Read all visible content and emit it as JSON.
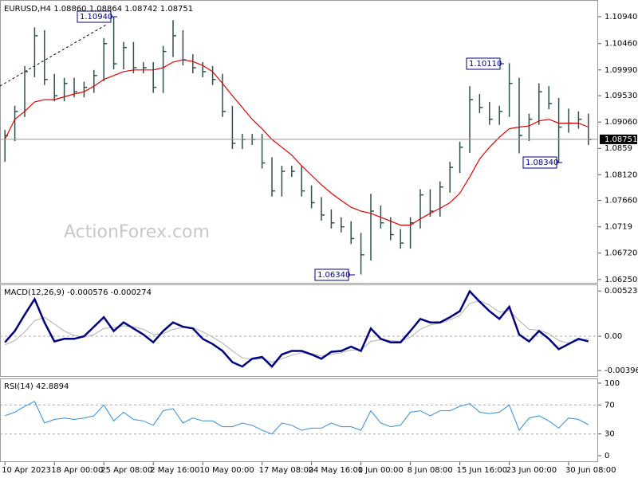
{
  "chart_data": [
    {
      "type": "hlc",
      "title": "EURUSD,H4  1.08860 1.08864 1.08742 1.08751",
      "watermark": "ActionForex.com",
      "color": "#2f4f4f",
      "high": [
        1.0892,
        1.0935,
        1.1006,
        1.1075,
        1.107,
        1.0992,
        1.0985,
        1.0985,
        1.0978,
        1.0999,
        1.1056,
        1.1094,
        1.1049,
        1.1049,
        1.1013,
        1.1013,
        1.1042,
        1.1088,
        1.107,
        1.1027,
        1.1013,
        1.1006,
        1.0992,
        1.0935,
        1.0885,
        1.0885,
        1.0885,
        1.0843,
        1.0828,
        1.0828,
        1.0828,
        1.0793,
        1.0772,
        1.075,
        1.0736,
        1.0729,
        1.0708,
        1.0778,
        1.0757,
        1.0736,
        1.0715,
        1.0736,
        1.0786,
        1.0786,
        1.08,
        1.0835,
        1.0871,
        1.097,
        1.0956,
        1.0942,
        1.0935,
        1.1011,
        1.0985,
        1.0921,
        1.0975,
        1.097,
        1.0949,
        1.093,
        1.0925,
        1.0921
      ],
      "low": [
        1.0835,
        1.0872,
        1.0915,
        1.0986,
        1.0972,
        1.0943,
        1.0943,
        1.095,
        1.095,
        1.0958,
        1.0979,
        1.1,
        1.1,
        1.0993,
        1.0993,
        1.0958,
        1.0958,
        1.1022,
        1.1007,
        1.0993,
        1.0986,
        1.0972,
        1.0915,
        1.0858,
        1.0858,
        1.0865,
        1.0823,
        1.0773,
        1.0773,
        1.0808,
        1.0773,
        1.0752,
        1.073,
        1.0716,
        1.0709,
        1.0688,
        1.0634,
        1.0659,
        1.0716,
        1.0695,
        1.068,
        1.068,
        1.0716,
        1.0737,
        1.0737,
        1.078,
        1.0815,
        1.0851,
        1.0922,
        1.0901,
        1.0901,
        1.0915,
        1.085,
        1.0872,
        1.0901,
        1.0929,
        1.0834,
        1.0887,
        1.0894,
        1.0865
      ],
      "close": [
        1.0882,
        1.0925,
        1.0996,
        1.106,
        1.0982,
        1.0953,
        1.0975,
        1.096,
        1.0968,
        1.0989,
        1.1046,
        1.101,
        1.1039,
        1.1003,
        1.1003,
        1.0968,
        1.1032,
        1.106,
        1.1017,
        1.1003,
        1.0996,
        1.0982,
        1.0925,
        1.0868,
        1.0875,
        1.0875,
        1.0833,
        1.0783,
        1.0818,
        1.0818,
        1.0783,
        1.0762,
        1.074,
        1.0726,
        1.0719,
        1.0698,
        1.0669,
        1.0747,
        1.0726,
        1.0705,
        1.069,
        1.0726,
        1.0776,
        1.0747,
        1.079,
        1.0825,
        1.0861,
        1.0946,
        1.0932,
        1.0911,
        1.0925,
        1.0975,
        1.0882,
        1.0911,
        1.096,
        1.0939,
        1.0897,
        1.0904,
        1.0911,
        1.0875
      ],
      "series": [
        {
          "color": "#e00000",
          "values": [
            1.0875,
            1.0911,
            1.0925,
            1.0942,
            1.0946,
            1.0946,
            1.0951,
            1.0956,
            1.096,
            1.097,
            1.0982,
            1.0989,
            1.0996,
            1.0999,
            1.0999,
            1.0999,
            1.1003,
            1.1013,
            1.1017,
            1.1014,
            1.1007,
            1.0996,
            1.0975,
            1.0953,
            1.0932,
            1.0911,
            1.0894,
            1.0875,
            1.0861,
            1.0847,
            1.0828,
            1.0811,
            1.0794,
            1.0779,
            1.0766,
            1.0754,
            1.0747,
            1.0743,
            1.0736,
            1.0729,
            1.0722,
            1.0722,
            1.0733,
            1.0743,
            1.0752,
            1.0762,
            1.0779,
            1.0808,
            1.084,
            1.0861,
            1.0879,
            1.0894,
            1.0897,
            1.0899,
            1.0908,
            1.0911,
            1.0904,
            1.0904,
            1.0904,
            1.0897
          ]
        }
      ],
      "current": 1.08751,
      "annotations": [
        "1.10940",
        "1.10110",
        "1.08340",
        "1.06340"
      ],
      "ylim": [
        1.0619,
        1.1121
      ],
      "yticks": [
        {
          "value": 1.1094,
          "label": "1.10940"
        },
        {
          "value": 1.1046,
          "label": "1.10460"
        },
        {
          "value": 1.0999,
          "label": "1.09990"
        },
        {
          "value": 1.0953,
          "label": "1.09530"
        },
        {
          "value": 1.0906,
          "label": "1.09060"
        },
        1.0859,
        {
          "value": 1.0812,
          "label": "1.08120"
        },
        {
          "value": 1.0766,
          "label": "1.07660"
        },
        1.0719,
        {
          "value": 1.0672,
          "label": "1.06720"
        },
        {
          "value": 1.0625,
          "label": "1.06250"
        }
      ]
    },
    {
      "type": "line",
      "title": "MACD(12,26,9) -0.000576 -0.000274",
      "series": [
        {
          "color": "#b0b0b0",
          "width": 1,
          "values": [
            -0.001,
            -0.0005,
            0.0005,
            0.0018,
            0.0022,
            0.0014,
            0.0006,
            0.0001,
            -0.0001,
            0.0002,
            0.0009,
            0.001,
            0.0012,
            0.0011,
            0.0008,
            0.0002,
            0.0003,
            0.0008,
            0.001,
            0.001,
            0.0005,
            -0.0001,
            -0.0008,
            -0.0017,
            -0.0025,
            -0.0027,
            -0.0026,
            -0.003,
            -0.0026,
            -0.0022,
            -0.0019,
            -0.002,
            -0.0023,
            -0.0021,
            -0.0019,
            -0.0016,
            -0.0016,
            -0.0006,
            -0.0004,
            -0.0005,
            -0.0006,
            -0.0001,
            0.0008,
            0.0013,
            0.0015,
            0.0019,
            0.0024,
            0.0038,
            0.0041,
            0.0036,
            0.0028,
            0.003,
            0.0018,
            0.0008,
            0.0007,
            0.0003,
            -0.0005,
            -0.0008,
            -0.0005,
            -0.0003
          ]
        },
        {
          "color": "#000080",
          "width": 2.5,
          "values": [
            -0.0007,
            0.0006,
            0.0025,
            0.0043,
            0.0016,
            -0.0006,
            -0.0003,
            -0.0003,
            0,
            0.0011,
            0.0022,
            0.0006,
            0.0016,
            0.0009,
            0.0002,
            -0.0007,
            0.0006,
            0.0016,
            0.0011,
            0.0009,
            -0.0003,
            -0.0009,
            -0.0017,
            -0.003,
            -0.0035,
            -0.0026,
            -0.0024,
            -0.0035,
            -0.0021,
            -0.0017,
            -0.0017,
            -0.0021,
            -0.0026,
            -0.0018,
            -0.0017,
            -0.0012,
            -0.0017,
            0.0009,
            -0.0003,
            -0.0007,
            -0.0007,
            0.0006,
            0.002,
            0.0016,
            0.0016,
            0.0022,
            0.0029,
            0.0052,
            0.004,
            0.0029,
            0.002,
            0.0034,
            0.0002,
            -0.0006,
            0.0006,
            -0.0003,
            -0.0015,
            -0.0009,
            -0.0003,
            -0.0006
          ]
        }
      ],
      "ylim": [
        -0.0046,
        0.0059
      ],
      "yticks": [
        0.005234,
        {
          "value": 0,
          "label": "0.00"
        },
        -0.003966
      ],
      "levels": [
        0
      ]
    },
    {
      "type": "line",
      "title": "RSI(14) 42.8894",
      "categories": [
        "10 Apr 2023",
        null,
        null,
        null,
        null,
        "18 Apr 00:00",
        null,
        null,
        null,
        null,
        "25 Apr 08:00",
        null,
        null,
        null,
        null,
        "2 May 16:00",
        null,
        null,
        null,
        null,
        "10 May 00:00",
        null,
        null,
        null,
        null,
        null,
        "17 May 08:00",
        null,
        null,
        null,
        null,
        "24 May 16:00",
        null,
        null,
        null,
        null,
        "1 Jun 00:00",
        null,
        null,
        null,
        null,
        "8 Jun 08:00",
        null,
        null,
        null,
        null,
        "15 Jun 16:00",
        null,
        null,
        null,
        null,
        "23 Jun 00:00",
        null,
        null,
        null,
        null,
        null,
        "30 Jun 08:00",
        null,
        null
      ],
      "series": [
        {
          "color": "#2f8fdc",
          "width": 1,
          "values": [
            55,
            60,
            68,
            75,
            45,
            50,
            52,
            50,
            52,
            55,
            70,
            48,
            60,
            50,
            48,
            42,
            62,
            65,
            45,
            52,
            48,
            48,
            40,
            40,
            45,
            42,
            35,
            30,
            45,
            42,
            35,
            38,
            38,
            45,
            40,
            40,
            35,
            62,
            45,
            40,
            42,
            60,
            62,
            55,
            62,
            62,
            68,
            72,
            60,
            58,
            60,
            70,
            35,
            52,
            55,
            48,
            38,
            52,
            50,
            42.9
          ]
        }
      ],
      "ylim": [
        -8.8,
        105.5
      ],
      "yticks": [
        100,
        70,
        30,
        0
      ],
      "levels": [
        70,
        30
      ]
    }
  ]
}
